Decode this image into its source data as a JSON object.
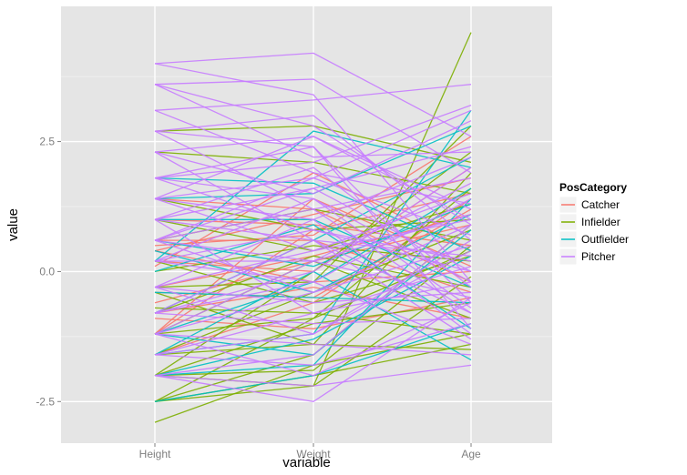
{
  "chart_data": {
    "type": "line",
    "subtype": "parallel-coordinates",
    "title": "",
    "xlabel": "variable",
    "ylabel": "value",
    "categories": [
      "Height",
      "Weight",
      "Age"
    ],
    "y_ticks": [
      -2.5,
      0.0,
      2.5
    ],
    "y_tick_labels": [
      "-2.5",
      "0.0",
      "2.5"
    ],
    "ylim": [
      -3.3,
      5.1
    ],
    "grid": true,
    "panel_background": "#e5e5e5",
    "grid_color": "#ffffff",
    "legend": {
      "title": "PosCategory",
      "placement": "right",
      "entries": [
        "Catcher",
        "Infielder",
        "Outfielder",
        "Pitcher"
      ]
    },
    "series": [
      {
        "name": "Catcher",
        "color": "#f8766d",
        "lines": [
          [
            -1.2,
            0.8,
            1.5
          ],
          [
            0.4,
            1.1,
            1.8
          ],
          [
            -0.6,
            0.2,
            0.9
          ],
          [
            0.6,
            0.6,
            -0.4
          ],
          [
            -0.4,
            -0.5,
            1.2
          ],
          [
            -1.2,
            1.4,
            0.1
          ],
          [
            0.2,
            0.0,
            2.0
          ],
          [
            -0.8,
            -0.3,
            -0.9
          ],
          [
            1.0,
            0.9,
            0.5
          ],
          [
            -1.6,
            -0.6,
            1.4
          ],
          [
            0.4,
            -0.2,
            0.0
          ],
          [
            0.1,
            1.9,
            0.4
          ],
          [
            -0.3,
            0.3,
            1.1
          ],
          [
            1.4,
            1.2,
            -0.2
          ],
          [
            -0.9,
            -1.1,
            -0.5
          ],
          [
            0.5,
            0.7,
            2.6
          ]
        ]
      },
      {
        "name": "Infielder",
        "color": "#7cae00",
        "lines": [
          [
            -2.9,
            -1.8,
            -1.2
          ],
          [
            -2.5,
            -2.0,
            -1.4
          ],
          [
            -2.5,
            -0.9,
            0.4
          ],
          [
            -2.0,
            -2.2,
            4.6
          ],
          [
            2.7,
            2.8,
            2.1
          ],
          [
            2.3,
            2.1,
            1.5
          ],
          [
            -2.0,
            -1.0,
            -0.6
          ],
          [
            -1.6,
            -0.4,
            0.8
          ],
          [
            -1.2,
            -0.9,
            1.6
          ],
          [
            -0.8,
            0.3,
            -0.3
          ],
          [
            -0.4,
            -1.4,
            1.9
          ],
          [
            0.0,
            0.5,
            0.2
          ],
          [
            -2.5,
            -1.6,
            0.9
          ],
          [
            -2.0,
            0.0,
            2.3
          ],
          [
            -1.6,
            -1.4,
            -1.5
          ],
          [
            0.6,
            1.2,
            0.6
          ],
          [
            1.4,
            0.8,
            1.0
          ],
          [
            -0.3,
            -0.2,
            2.8
          ],
          [
            -1.2,
            0.2,
            -0.9
          ],
          [
            0.2,
            -0.6,
            0.3
          ],
          [
            -2.0,
            -1.9,
            0.5
          ],
          [
            1.0,
            0.4,
            1.3
          ],
          [
            -0.7,
            -0.8,
            -1.2
          ],
          [
            -2.5,
            -2.2,
            -0.1
          ]
        ]
      },
      {
        "name": "Outfielder",
        "color": "#00bfc4",
        "lines": [
          [
            -2.5,
            -2.0,
            -1.0
          ],
          [
            -1.6,
            -1.2,
            3.1
          ],
          [
            -1.6,
            0.0,
            -1.7
          ],
          [
            0.2,
            2.7,
            2.0
          ],
          [
            1.4,
            1.5,
            2.8
          ],
          [
            -1.2,
            -1.6,
            0.8
          ],
          [
            -0.4,
            -0.5,
            -0.6
          ],
          [
            0.6,
            0.1,
            1.3
          ],
          [
            -2.0,
            -1.3,
            0.3
          ],
          [
            1.0,
            1.0,
            -0.3
          ],
          [
            -0.8,
            0.6,
            2.2
          ],
          [
            0.4,
            -0.4,
            1.1
          ],
          [
            1.8,
            1.7,
            0.4
          ],
          [
            -1.2,
            -0.2,
            1.6
          ],
          [
            0.0,
            0.9,
            -1.1
          ],
          [
            -2.0,
            -1.8,
            1.4
          ]
        ]
      },
      {
        "name": "Pitcher",
        "color": "#c77cff",
        "lines": [
          [
            4.0,
            4.2,
            2.6
          ],
          [
            3.6,
            3.7,
            1.9
          ],
          [
            3.1,
            3.3,
            3.6
          ],
          [
            3.6,
            2.8,
            0.9
          ],
          [
            2.7,
            2.4,
            -0.6
          ],
          [
            2.3,
            2.6,
            1.2
          ],
          [
            1.8,
            2.1,
            3.2
          ],
          [
            1.8,
            1.4,
            -0.2
          ],
          [
            1.4,
            1.8,
            0.7
          ],
          [
            1.4,
            1.0,
            -1.2
          ],
          [
            1.0,
            1.6,
            2.4
          ],
          [
            1.0,
            0.6,
            0.3
          ],
          [
            0.6,
            1.2,
            -0.8
          ],
          [
            0.6,
            0.2,
            1.7
          ],
          [
            0.2,
            0.8,
            0.0
          ],
          [
            0.2,
            -0.2,
            -1.4
          ],
          [
            -0.3,
            0.4,
            1.0
          ],
          [
            -0.3,
            -0.6,
            -0.4
          ],
          [
            -0.8,
            0.0,
            2.0
          ],
          [
            -0.8,
            -1.0,
            -0.9
          ],
          [
            -1.2,
            -0.4,
            0.5
          ],
          [
            -1.2,
            -1.4,
            -1.6
          ],
          [
            -1.6,
            -0.8,
            0.1
          ],
          [
            -1.6,
            -1.8,
            -1.0
          ],
          [
            -2.0,
            -2.5,
            -0.5
          ],
          [
            -2.0,
            -2.2,
            -1.8
          ],
          [
            3.1,
            1.9,
            1.3
          ],
          [
            2.7,
            3.0,
            0.6
          ],
          [
            2.3,
            1.5,
            2.9
          ],
          [
            1.8,
            2.4,
            -1.1
          ],
          [
            1.4,
            0.4,
            1.5
          ],
          [
            1.0,
            2.0,
            -0.3
          ],
          [
            0.6,
            -0.4,
            0.9
          ],
          [
            0.2,
            1.4,
            -0.7
          ],
          [
            -0.3,
            1.0,
            2.2
          ],
          [
            -0.8,
            0.6,
            -1.3
          ],
          [
            -1.2,
            0.2,
            1.1
          ],
          [
            -1.6,
            -1.2,
            0.4
          ],
          [
            4.0,
            3.4,
            -0.2
          ],
          [
            2.7,
            1.2,
            1.8
          ],
          [
            1.8,
            0.8,
            0.2
          ],
          [
            0.6,
            1.8,
            3.1
          ],
          [
            -0.3,
            -1.2,
            0.6
          ],
          [
            -2.0,
            -1.6,
            0.9
          ],
          [
            1.4,
            2.6,
            1.0
          ],
          [
            0.2,
            0.2,
            -0.5
          ],
          [
            -0.8,
            -0.2,
            1.4
          ],
          [
            2.3,
            0.6,
            -0.8
          ],
          [
            3.6,
            2.2,
            2.3
          ],
          [
            1.0,
            -0.8,
            -0.2
          ],
          [
            -1.2,
            -2.0,
            -0.6
          ],
          [
            0.6,
            1.6,
            0.0
          ]
        ]
      }
    ]
  }
}
